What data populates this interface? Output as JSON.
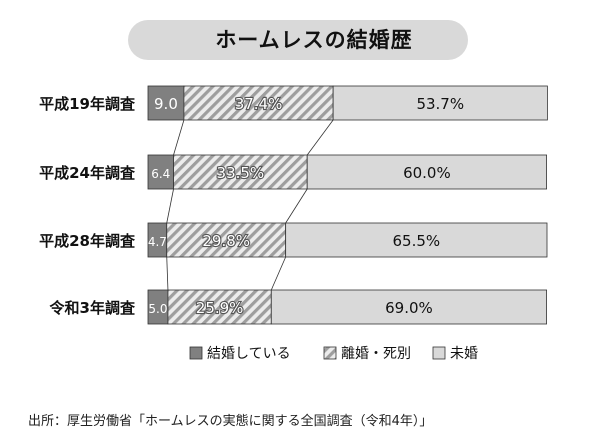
{
  "chart_data": {
    "type": "bar",
    "orientation": "horizontal",
    "stacked": true,
    "percent": true,
    "title": "ホームレスの結婚歴",
    "xlim": [
      0,
      100
    ],
    "categories": [
      "平成19年調査",
      "平成24年調査",
      "平成28年調査",
      "令和3年調査"
    ],
    "series": [
      {
        "name": "結婚している",
        "values": [
          9.0,
          6.4,
          4.7,
          5.0
        ],
        "labels": [
          "9.0",
          "6.4",
          "4.7",
          "5.0"
        ],
        "color": "#808080",
        "pattern": "solid"
      },
      {
        "name": "離婚・死別",
        "values": [
          37.4,
          33.5,
          29.8,
          25.9
        ],
        "labels": [
          "37.4%",
          "33.5%",
          "29.8%",
          "25.9%"
        ],
        "color": "#a6a6a6",
        "pattern": "hatch"
      },
      {
        "name": "未婚",
        "values": [
          53.7,
          60.0,
          65.5,
          69.0
        ],
        "labels": [
          "53.7%",
          "60.0%",
          "65.5%",
          "69.0%"
        ],
        "color": "#d9d9d9",
        "pattern": "solid"
      }
    ],
    "connector_lines": true,
    "legend_position": "bottom",
    "grid": false
  },
  "source": "出所：厚生労働省「ホームレスの実態に関する全国調査（令和4年）」"
}
